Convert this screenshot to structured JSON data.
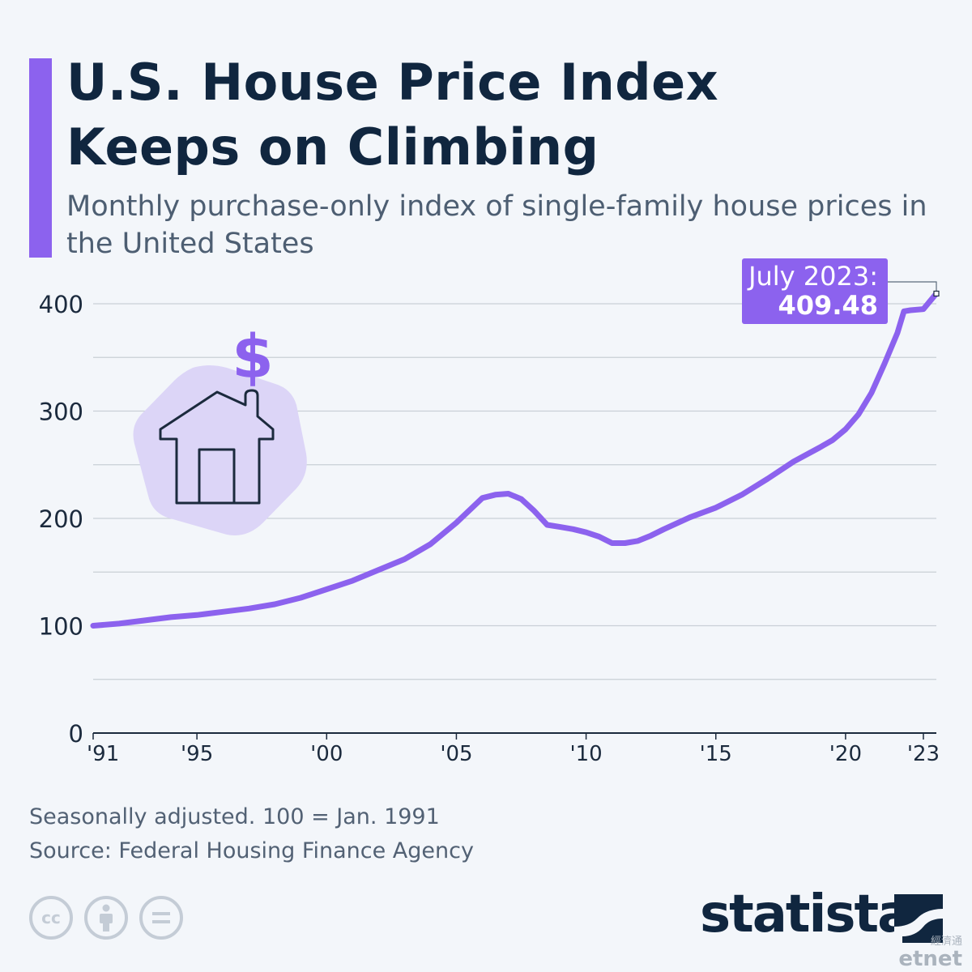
{
  "title": "U.S. House Price Index Keeps on Climbing",
  "subtitle": "Monthly purchase-only index of single-family house prices in the United States",
  "notes": [
    "Seasonally adjusted. 100 = Jan. 1991",
    "Source: Federal Housing Finance Agency"
  ],
  "brand": "statista",
  "watermark": {
    "zh": "經濟通",
    "en": "etnet"
  },
  "colors": {
    "accent": "#8c62ee",
    "line": "#8c62ee",
    "title": "#10263f",
    "grid": "#c9cfd6",
    "illustration_bg": "#dcd5f7"
  },
  "icons": [
    "house-icon",
    "dollar-icon",
    "cc-icon",
    "attribution-icon",
    "no-derivatives-icon",
    "statista-logo-icon"
  ],
  "chart_data": {
    "type": "line",
    "title": "U.S. House Price Index Keeps on Climbing",
    "xlabel": "",
    "ylabel": "",
    "xlim": [
      1991,
      2023.5
    ],
    "ylim": [
      0,
      400
    ],
    "grid": true,
    "y_ticks": [
      0,
      100,
      200,
      300,
      400
    ],
    "x_ticks": [
      {
        "value": 1991,
        "label": "'91"
      },
      {
        "value": 1995,
        "label": "'95"
      },
      {
        "value": 2000,
        "label": "'00"
      },
      {
        "value": 2005,
        "label": "'05"
      },
      {
        "value": 2010,
        "label": "'10"
      },
      {
        "value": 2015,
        "label": "'15"
      },
      {
        "value": 2020,
        "label": "'20"
      },
      {
        "value": 2023,
        "label": "'23"
      }
    ],
    "annotation": {
      "label": "July 2023:",
      "value": "409.48",
      "x": 2023.5,
      "y": 409.48
    },
    "series": [
      {
        "name": "",
        "points": [
          [
            1991.0,
            100
          ],
          [
            1992.0,
            102
          ],
          [
            1993.0,
            105
          ],
          [
            1994.0,
            108
          ],
          [
            1995.0,
            110
          ],
          [
            1996.0,
            113
          ],
          [
            1997.0,
            116
          ],
          [
            1998.0,
            120
          ],
          [
            1999.0,
            126
          ],
          [
            2000.0,
            134
          ],
          [
            2001.0,
            142
          ],
          [
            2002.0,
            152
          ],
          [
            2003.0,
            162
          ],
          [
            2004.0,
            176
          ],
          [
            2005.0,
            196
          ],
          [
            2006.0,
            219
          ],
          [
            2006.5,
            222
          ],
          [
            2007.0,
            223
          ],
          [
            2007.5,
            218
          ],
          [
            2008.0,
            207
          ],
          [
            2008.5,
            194
          ],
          [
            2009.0,
            192
          ],
          [
            2009.5,
            190
          ],
          [
            2010.0,
            187
          ],
          [
            2010.5,
            183
          ],
          [
            2011.0,
            177
          ],
          [
            2011.5,
            177
          ],
          [
            2012.0,
            179
          ],
          [
            2012.5,
            184
          ],
          [
            2013.0,
            190
          ],
          [
            2014.0,
            201
          ],
          [
            2015.0,
            210
          ],
          [
            2016.0,
            222
          ],
          [
            2017.0,
            237
          ],
          [
            2018.0,
            253
          ],
          [
            2019.0,
            266
          ],
          [
            2019.5,
            273
          ],
          [
            2020.0,
            283
          ],
          [
            2020.5,
            297
          ],
          [
            2021.0,
            317
          ],
          [
            2021.5,
            344
          ],
          [
            2022.0,
            373
          ],
          [
            2022.25,
            393
          ],
          [
            2022.5,
            394
          ],
          [
            2023.0,
            395
          ],
          [
            2023.5,
            409.48
          ]
        ]
      }
    ]
  }
}
